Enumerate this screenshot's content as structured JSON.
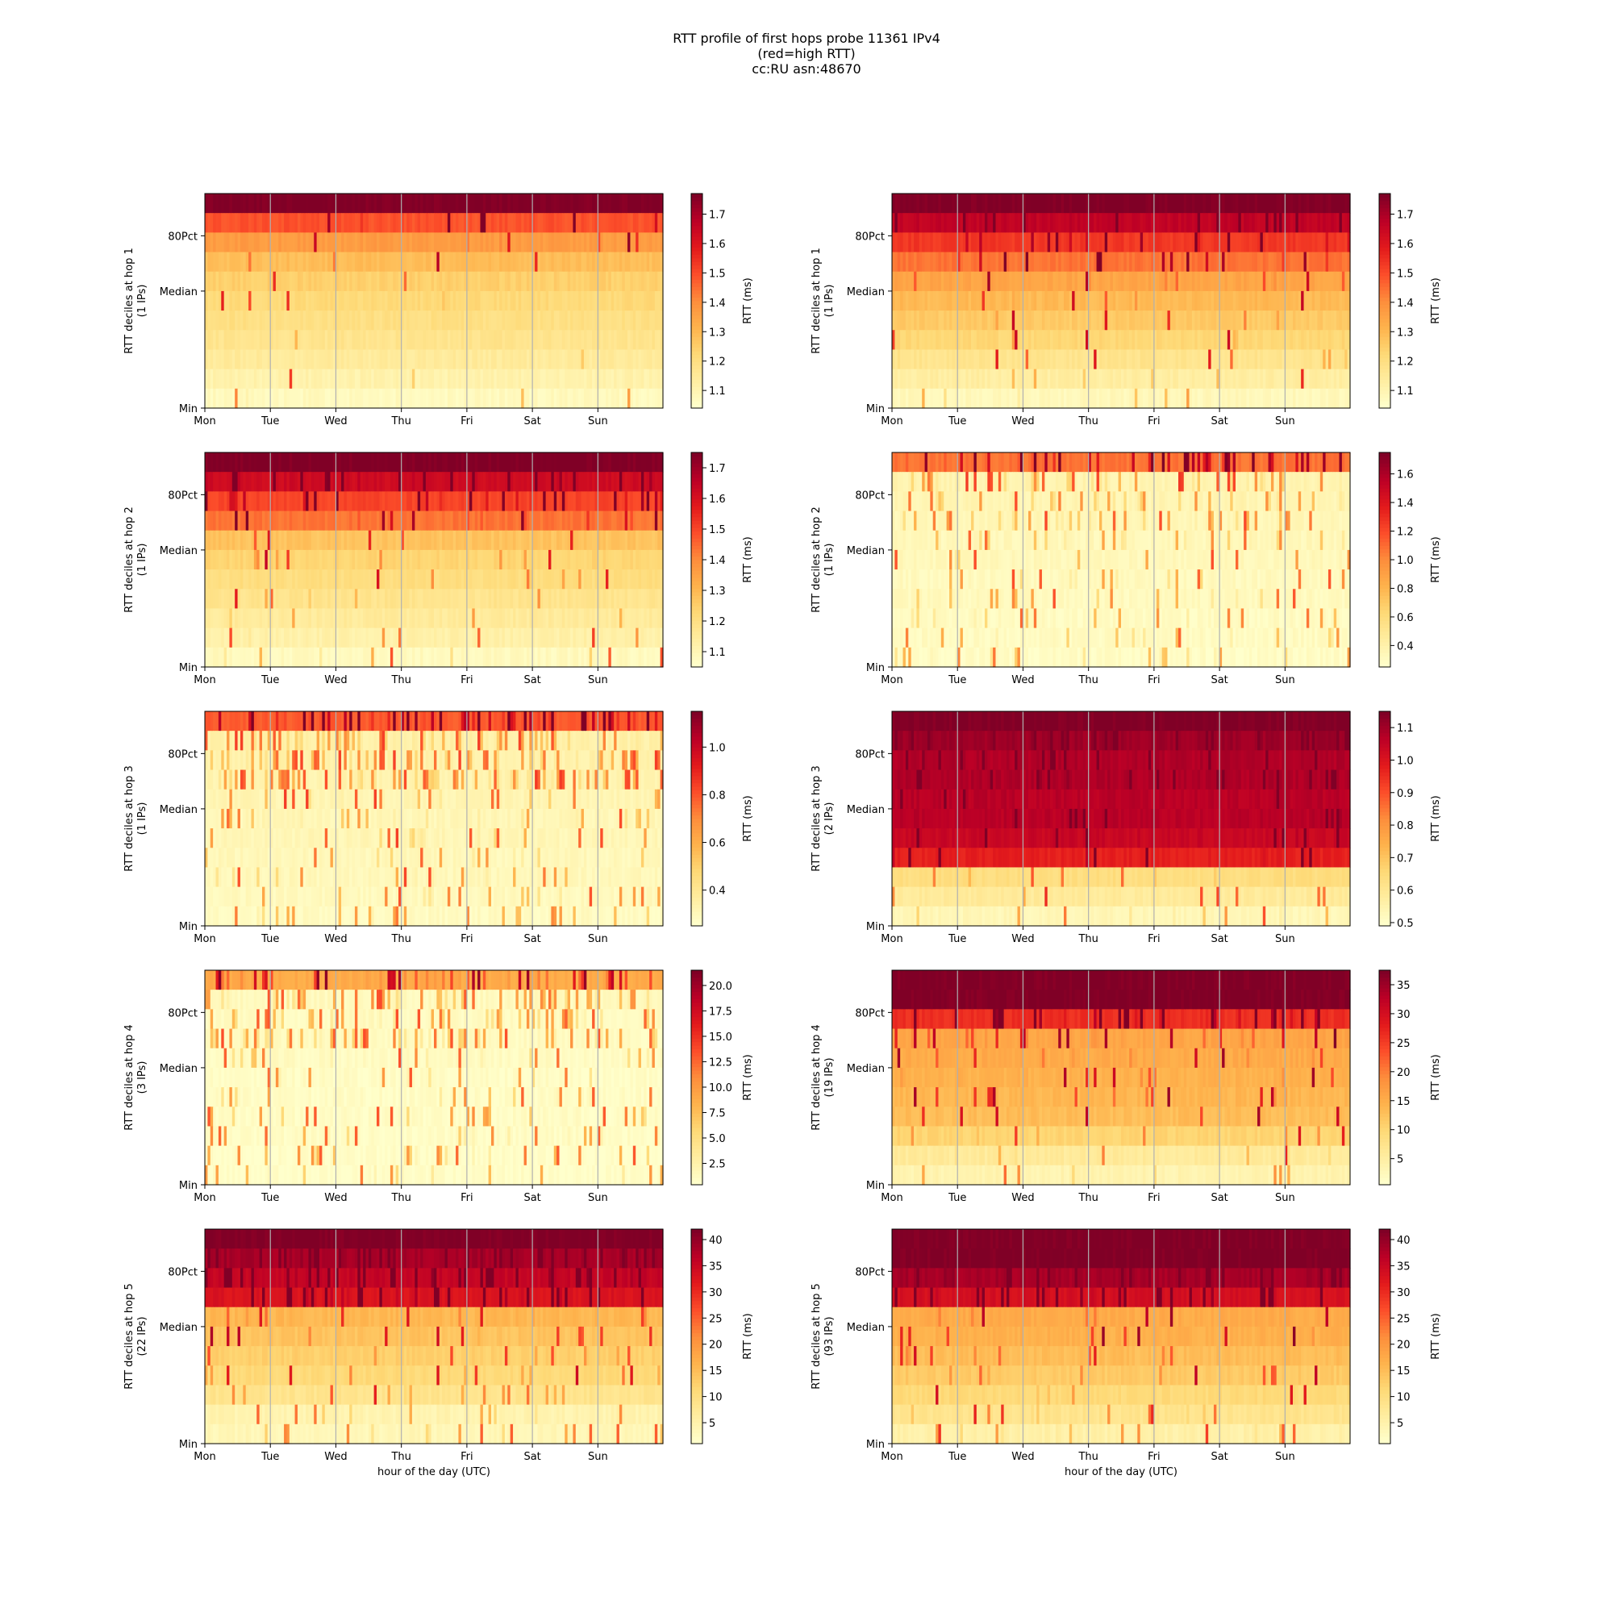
{
  "figure": {
    "title_lines": [
      "RTT profile of first hops probe 11361 IPv4",
      "(red=high RTT)",
      "cc:RU asn:48670"
    ],
    "xlabel": "hour of the day (UTC)"
  },
  "chart_data": [
    {
      "type": "heatmap",
      "ylabel": "RTT deciles at hop 1",
      "ips_label": "(1 IPs)",
      "x_tick_labels": [
        "Mon",
        "Tue",
        "Wed",
        "Thu",
        "Fri",
        "Sat",
        "Sun"
      ],
      "y_tick_labels": [
        "80Pct",
        "Median",
        "Min"
      ],
      "colorbar": {
        "label": "RTT (ms)",
        "ticks": [
          "1.1",
          "1.2",
          "1.3",
          "1.4",
          "1.5",
          "1.6",
          "1.7"
        ],
        "range": [
          1.04,
          1.77
        ]
      },
      "decile_levels": [
        0.04,
        0.09,
        0.14,
        0.18,
        0.21,
        0.24,
        0.28,
        0.34,
        0.45,
        0.62,
        1.0
      ],
      "spike_density": 0.05
    },
    {
      "type": "heatmap",
      "ylabel": "RTT deciles at hop 1",
      "ips_label": "(1 IPs)",
      "x_tick_labels": [
        "Mon",
        "Tue",
        "Wed",
        "Thu",
        "Fri",
        "Sat",
        "Sun"
      ],
      "y_tick_labels": [
        "80Pct",
        "Median",
        "Min"
      ],
      "colorbar": {
        "label": "RTT (ms)",
        "ticks": [
          "1.1",
          "1.2",
          "1.3",
          "1.4",
          "1.5",
          "1.6",
          "1.7"
        ],
        "range": [
          1.04,
          1.77
        ]
      },
      "decile_levels": [
        0.05,
        0.12,
        0.18,
        0.25,
        0.3,
        0.35,
        0.42,
        0.55,
        0.68,
        0.86,
        1.0
      ],
      "spike_density": 0.1
    },
    {
      "type": "heatmap",
      "ylabel": "RTT deciles at hop 2",
      "ips_label": "(1 IPs)",
      "x_tick_labels": [
        "Mon",
        "Tue",
        "Wed",
        "Thu",
        "Fri",
        "Sat",
        "Sun"
      ],
      "y_tick_labels": [
        "80Pct",
        "Median",
        "Min"
      ],
      "colorbar": {
        "label": "RTT (ms)",
        "ticks": [
          "1.1",
          "1.2",
          "1.3",
          "1.4",
          "1.5",
          "1.6",
          "1.7"
        ],
        "range": [
          1.05,
          1.75
        ]
      },
      "decile_levels": [
        0.04,
        0.1,
        0.14,
        0.18,
        0.22,
        0.26,
        0.32,
        0.55,
        0.65,
        0.82,
        1.0
      ],
      "spike_density": 0.12
    },
    {
      "type": "heatmap",
      "ylabel": "RTT deciles at hop 2",
      "ips_label": "(1 IPs)",
      "x_tick_labels": [
        "Mon",
        "Tue",
        "Wed",
        "Thu",
        "Fri",
        "Sat",
        "Sun"
      ],
      "y_tick_labels": [
        "80Pct",
        "Median",
        "Min"
      ],
      "colorbar": {
        "label": "RTT (ms)",
        "ticks": [
          "0.4",
          "0.6",
          "0.8",
          "1.0",
          "1.2",
          "1.4",
          "1.6"
        ],
        "range": [
          0.25,
          1.75
        ]
      },
      "decile_levels": [
        0.02,
        0.03,
        0.03,
        0.04,
        0.04,
        0.05,
        0.05,
        0.06,
        0.07,
        0.08,
        0.55
      ],
      "spike_density": 0.25
    },
    {
      "type": "heatmap",
      "ylabel": "RTT deciles at hop 3",
      "ips_label": "(1 IPs)",
      "x_tick_labels": [
        "Mon",
        "Tue",
        "Wed",
        "Thu",
        "Fri",
        "Sat",
        "Sun"
      ],
      "y_tick_labels": [
        "80Pct",
        "Median",
        "Min"
      ],
      "colorbar": {
        "label": "RTT (ms)",
        "ticks": [
          "0.4",
          "0.6",
          "0.8",
          "1.0"
        ],
        "range": [
          0.25,
          1.15
        ]
      },
      "decile_levels": [
        0.03,
        0.04,
        0.05,
        0.05,
        0.06,
        0.06,
        0.07,
        0.08,
        0.09,
        0.1,
        0.6
      ],
      "spike_density": 0.35
    },
    {
      "type": "heatmap",
      "ylabel": "RTT deciles at hop 3",
      "ips_label": "(2 IPs)",
      "x_tick_labels": [
        "Mon",
        "Tue",
        "Wed",
        "Thu",
        "Fri",
        "Sat",
        "Sun"
      ],
      "y_tick_labels": [
        "80Pct",
        "Median",
        "Min"
      ],
      "colorbar": {
        "label": "RTT (ms)",
        "ticks": [
          "0.5",
          "0.6",
          "0.7",
          "0.8",
          "0.9",
          "1.0",
          "1.1"
        ],
        "range": [
          0.49,
          1.15
        ]
      },
      "decile_levels": [
        0.06,
        0.14,
        0.22,
        0.74,
        0.84,
        0.88,
        0.88,
        0.9,
        0.9,
        0.94,
        1.0
      ],
      "spike_density": 0.12
    },
    {
      "type": "heatmap",
      "ylabel": "RTT deciles at hop 4",
      "ips_label": "(3 IPs)",
      "x_tick_labels": [
        "Mon",
        "Tue",
        "Wed",
        "Thu",
        "Fri",
        "Sat",
        "Sun"
      ],
      "y_tick_labels": [
        "80Pct",
        "Median",
        "Min"
      ],
      "colorbar": {
        "label": "RTT (ms)",
        "ticks": [
          "2.5",
          "5.0",
          "7.5",
          "10.0",
          "12.5",
          "15.0",
          "17.5",
          "20.0"
        ],
        "range": [
          0.4,
          21.5
        ]
      },
      "decile_levels": [
        0.01,
        0.01,
        0.02,
        0.02,
        0.02,
        0.02,
        0.03,
        0.03,
        0.03,
        0.04,
        0.4
      ],
      "spike_density": 0.3
    },
    {
      "type": "heatmap",
      "ylabel": "RTT deciles at hop 4",
      "ips_label": "(19 IPs)",
      "x_tick_labels": [
        "Mon",
        "Tue",
        "Wed",
        "Thu",
        "Fri",
        "Sat",
        "Sun"
      ],
      "y_tick_labels": [
        "80Pct",
        "Median",
        "Min"
      ],
      "colorbar": {
        "label": "RTT (ms)",
        "ticks": [
          "5",
          "10",
          "15",
          "20",
          "25",
          "30",
          "35"
        ],
        "range": [
          0.5,
          37.5
        ]
      },
      "decile_levels": [
        0.08,
        0.14,
        0.26,
        0.34,
        0.36,
        0.38,
        0.4,
        0.42,
        0.7,
        1.0,
        1.0
      ],
      "spike_density": 0.15
    },
    {
      "type": "heatmap",
      "ylabel": "RTT deciles at hop 5",
      "ips_label": "(22 IPs)",
      "x_tick_labels": [
        "Mon",
        "Tue",
        "Wed",
        "Thu",
        "Fri",
        "Sat",
        "Sun"
      ],
      "y_tick_labels": [
        "80Pct",
        "Median",
        "Min"
      ],
      "colorbar": {
        "label": "RTT (ms)",
        "ticks": [
          "5",
          "10",
          "15",
          "20",
          "25",
          "30",
          "35",
          "40"
        ],
        "range": [
          1,
          42
        ]
      },
      "decile_levels": [
        0.06,
        0.08,
        0.18,
        0.24,
        0.28,
        0.32,
        0.36,
        0.78,
        0.85,
        0.92,
        1.0
      ],
      "spike_density": 0.18
    },
    {
      "type": "heatmap",
      "ylabel": "RTT deciles at hop 5",
      "ips_label": "(93 IPs)",
      "x_tick_labels": [
        "Mon",
        "Tue",
        "Wed",
        "Thu",
        "Fri",
        "Sat",
        "Sun"
      ],
      "y_tick_labels": [
        "80Pct",
        "Median",
        "Min"
      ],
      "colorbar": {
        "label": "RTT (ms)",
        "ticks": [
          "5",
          "10",
          "15",
          "20",
          "25",
          "30",
          "35",
          "40"
        ],
        "range": [
          1,
          42
        ]
      },
      "decile_levels": [
        0.1,
        0.18,
        0.24,
        0.3,
        0.34,
        0.38,
        0.4,
        0.8,
        0.92,
        1.0,
        1.0
      ],
      "spike_density": 0.15
    }
  ]
}
